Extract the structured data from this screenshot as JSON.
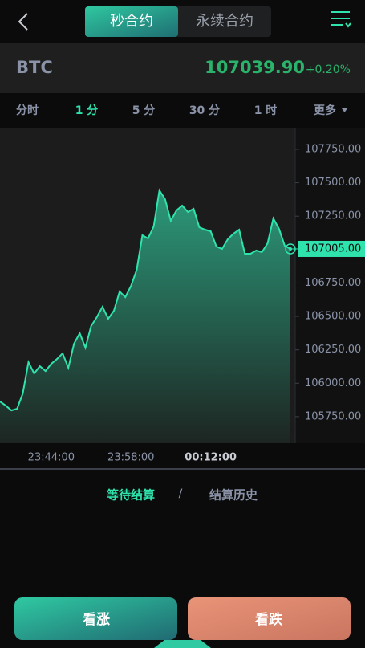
{
  "header": {
    "tabs": [
      "秒合约",
      "永续合约"
    ]
  },
  "ticker": {
    "symbol": "BTC",
    "price": "107039.90",
    "change": "+0.20%"
  },
  "timeframes": [
    "分时",
    "1 分",
    "5 分",
    "30 分",
    "1 时",
    "更多"
  ],
  "chart_data": {
    "type": "area",
    "color": "#2fe3ad",
    "values": [
      105863,
      105833,
      105797,
      105809,
      105923,
      106157,
      106073,
      106127,
      106091,
      106145,
      106181,
      106223,
      106115,
      106296,
      106374,
      106266,
      106428,
      106494,
      106572,
      106482,
      106542,
      106686,
      106644,
      106728,
      106848,
      107107,
      107083,
      107173,
      107443,
      107377,
      107215,
      107293,
      107329,
      107281,
      107305,
      107167,
      107149,
      107137,
      107023,
      107005,
      107077,
      107119,
      107149,
      106969,
      106969,
      106993,
      106981,
      107047,
      107233,
      107155,
      107029,
      107005
    ],
    "xlim": [
      0,
      51
    ],
    "xticks": [
      {
        "value": 9,
        "label": "23:44:00"
      },
      {
        "value": 23,
        "label": "23:58:00"
      },
      {
        "value": 37,
        "label": "00:12:00"
      }
    ],
    "ylim": [
      105551,
      107906
    ],
    "yticks": [
      {
        "value": 105750,
        "label": "105750.00"
      },
      {
        "value": 106000,
        "label": "106000.00"
      },
      {
        "value": 106250,
        "label": "106250.00"
      },
      {
        "value": 106500,
        "label": "106500.00"
      },
      {
        "value": 106750,
        "label": "106750.00"
      },
      {
        "value": 107250,
        "label": "107250.00"
      },
      {
        "value": 107500,
        "label": "107500.00"
      },
      {
        "value": 107750,
        "label": "107750.00"
      }
    ],
    "current": {
      "value": 107005,
      "label": "107005.00"
    }
  },
  "orders": {
    "tabs": [
      "等待结算",
      "结算历史"
    ],
    "separator": "/"
  },
  "actions": [
    "看涨",
    "看跌"
  ]
}
